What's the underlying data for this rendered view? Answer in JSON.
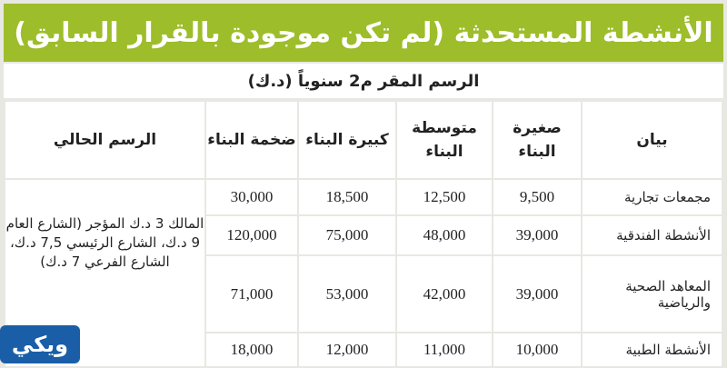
{
  "title": "الأنشطة المستحدثة (لم تكن موجودة بالقرار السابق)",
  "subtitle": "الرسم المقر م2 سنوياً (د.ك)",
  "headers": [
    "بيان",
    "صغيرة البناء",
    "متوسطة البناء",
    "كبيرة البناء",
    "ضخمة البناء",
    "الرسم الحالي"
  ],
  "rows": [
    {
      "label": "مجمعات تجارية",
      "values": [
        "9,500",
        "12,500",
        "18,500",
        "30,000"
      ]
    },
    {
      "label": "الأنشطة الفندقية",
      "values": [
        "39,000",
        "48,000",
        "75,000",
        "120,000"
      ]
    },
    {
      "label": "المعاهد الصحية والرياضية",
      "values": [
        "39,000",
        "42,000",
        "53,000",
        "71,000"
      ]
    },
    {
      "label": "الأنشطة الطبية",
      "values": [
        "10,000",
        "11,000",
        "12,000",
        "18,000"
      ]
    }
  ],
  "current_fee": "المالك 3 د.ك المؤجر (الشارع العام 9 د.ك، الشارع الرئيسي 7,5 د.ك، الشارع الفرعي 7 د.ك)",
  "logo": "ويكي",
  "colors": {
    "header": "#9dbd2a",
    "logo": "#1a5ea8"
  }
}
